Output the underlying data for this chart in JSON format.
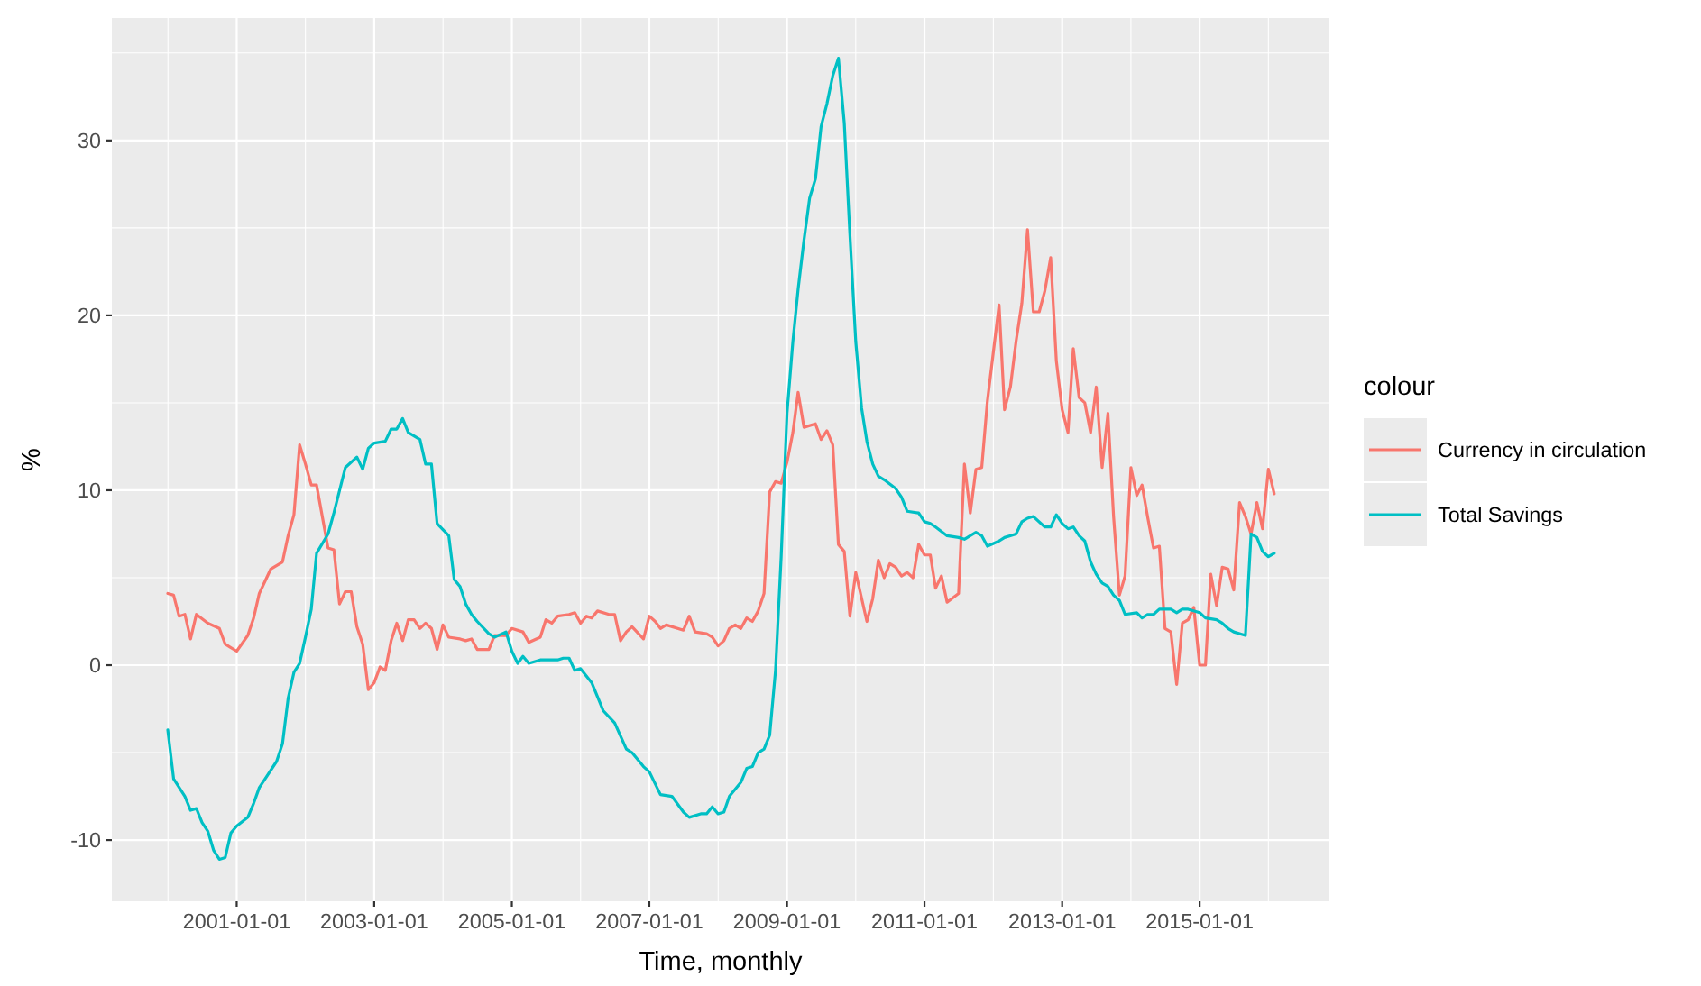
{
  "chart_data": {
    "type": "line",
    "xlabel": "Time, monthly",
    "ylabel": "%",
    "legend_title": "colour",
    "legend": "right",
    "grid": true,
    "xlim": [
      "1999-03-10",
      "2016-11-20"
    ],
    "ylim": [
      -13.5,
      37
    ],
    "xticks": [
      {
        "value": "2001-01-01",
        "label": "2001-01-01"
      },
      {
        "value": "2003-01-01",
        "label": "2003-01-01"
      },
      {
        "value": "2005-01-01",
        "label": "2005-01-01"
      },
      {
        "value": "2007-01-01",
        "label": "2007-01-01"
      },
      {
        "value": "2009-01-01",
        "label": "2009-01-01"
      },
      {
        "value": "2011-01-01",
        "label": "2011-01-01"
      },
      {
        "value": "2013-01-01",
        "label": "2013-01-01"
      },
      {
        "value": "2015-01-01",
        "label": "2015-01-01"
      }
    ],
    "yticks": [
      -10,
      0,
      10,
      20,
      30
    ],
    "series": [
      {
        "name": "Currency in circulation",
        "color": "#f8766d",
        "x": [
          "2000-01",
          "2000-02",
          "2000-03",
          "2000-04",
          "2000-05",
          "2000-06",
          "2000-08",
          "2000-10",
          "2000-11",
          "2001-01",
          "2001-03",
          "2001-04",
          "2001-05",
          "2001-07",
          "2001-09",
          "2001-10",
          "2001-11",
          "2001-12",
          "2002-01",
          "2002-02",
          "2002-03",
          "2002-05",
          "2002-06",
          "2002-07",
          "2002-08",
          "2002-09",
          "2002-10",
          "2002-11",
          "2002-12",
          "2003-01",
          "2003-02",
          "2003-03",
          "2003-04",
          "2003-05",
          "2003-06",
          "2003-07",
          "2003-08",
          "2003-09",
          "2003-10",
          "2003-11",
          "2003-12",
          "2004-01",
          "2004-02",
          "2004-04",
          "2004-05",
          "2004-06",
          "2004-07",
          "2004-09",
          "2004-10",
          "2004-12",
          "2005-01",
          "2005-03",
          "2005-04",
          "2005-06",
          "2005-07",
          "2005-08",
          "2005-09",
          "2005-11",
          "2005-12",
          "2006-01",
          "2006-02",
          "2006-03",
          "2006-04",
          "2006-06",
          "2006-07",
          "2006-08",
          "2006-09",
          "2006-10",
          "2006-12",
          "2007-01",
          "2007-02",
          "2007-03",
          "2007-04",
          "2007-07",
          "2007-08",
          "2007-09",
          "2007-11",
          "2007-12",
          "2008-01",
          "2008-02",
          "2008-03",
          "2008-04",
          "2008-05",
          "2008-06",
          "2008-07",
          "2008-08",
          "2008-09",
          "2008-10",
          "2008-11",
          "2008-12",
          "2009-01",
          "2009-02",
          "2009-03",
          "2009-04",
          "2009-06",
          "2009-07",
          "2009-08",
          "2009-09",
          "2009-10",
          "2009-11",
          "2009-12",
          "2010-01",
          "2010-03",
          "2010-04",
          "2010-05",
          "2010-06",
          "2010-07",
          "2010-08",
          "2010-09",
          "2010-10",
          "2010-11",
          "2010-12",
          "2011-01",
          "2011-02",
          "2011-03",
          "2011-04",
          "2011-05",
          "2011-07",
          "2011-08",
          "2011-09",
          "2011-10",
          "2011-11",
          "2011-12",
          "2012-02",
          "2012-03",
          "2012-04",
          "2012-05",
          "2012-06",
          "2012-07",
          "2012-08",
          "2012-09",
          "2012-10",
          "2012-11",
          "2012-12",
          "2013-01",
          "2013-02",
          "2013-03",
          "2013-04",
          "2013-05",
          "2013-06",
          "2013-07",
          "2013-08",
          "2013-09",
          "2013-10",
          "2013-11",
          "2013-12",
          "2014-01",
          "2014-02",
          "2014-03",
          "2014-04",
          "2014-05",
          "2014-06",
          "2014-07",
          "2014-08",
          "2014-09",
          "2014-10",
          "2014-11",
          "2014-12",
          "2015-01",
          "2015-02",
          "2015-03",
          "2015-04",
          "2015-05",
          "2015-06",
          "2015-07",
          "2015-08",
          "2015-09",
          "2015-10",
          "2015-11",
          "2015-12",
          "2016-01",
          "2016-02"
        ],
        "values": [
          4.1,
          4.0,
          2.8,
          2.9,
          1.5,
          2.9,
          2.4,
          2.1,
          1.2,
          0.8,
          1.7,
          2.7,
          4.1,
          5.5,
          5.9,
          7.4,
          8.6,
          12.6,
          11.5,
          10.3,
          10.3,
          6.7,
          6.6,
          3.5,
          4.2,
          4.2,
          2.2,
          1.2,
          -1.4,
          -1.0,
          -0.1,
          -0.3,
          1.4,
          2.4,
          1.4,
          2.6,
          2.6,
          2.1,
          2.4,
          2.1,
          0.9,
          2.3,
          1.6,
          1.5,
          1.4,
          1.5,
          0.9,
          0.9,
          1.7,
          1.7,
          2.1,
          1.9,
          1.3,
          1.6,
          2.6,
          2.4,
          2.8,
          2.9,
          3.0,
          2.4,
          2.8,
          2.7,
          3.1,
          2.9,
          2.9,
          1.4,
          1.9,
          2.2,
          1.5,
          2.8,
          2.5,
          2.1,
          2.3,
          2.0,
          2.8,
          1.9,
          1.8,
          1.6,
          1.1,
          1.4,
          2.1,
          2.3,
          2.1,
          2.7,
          2.5,
          3.1,
          4.1,
          9.9,
          10.5,
          10.4,
          11.6,
          13.3,
          15.6,
          13.6,
          13.8,
          12.9,
          13.4,
          12.6,
          6.9,
          6.5,
          2.8,
          5.3,
          2.5,
          3.8,
          6.0,
          5.0,
          5.8,
          5.6,
          5.1,
          5.3,
          5.0,
          6.9,
          6.3,
          6.3,
          4.4,
          5.1,
          3.6,
          4.1,
          11.5,
          8.7,
          11.2,
          11.3,
          15.1,
          20.6,
          14.6,
          15.9,
          18.5,
          20.7,
          24.9,
          20.2,
          20.2,
          21.4,
          23.3,
          17.4,
          14.6,
          13.3,
          18.1,
          15.3,
          15.0,
          13.3,
          15.9,
          11.3,
          14.4,
          8.5,
          4.0,
          5.1,
          11.3,
          9.7,
          10.3,
          8.4,
          6.7,
          6.8,
          2.1,
          1.9,
          -1.1,
          2.4,
          2.6,
          3.3,
          0.0,
          0.0,
          5.2,
          3.4,
          5.6,
          5.5,
          4.3,
          9.3,
          8.5,
          7.5,
          9.3,
          7.8,
          11.2,
          9.8
        ]
      },
      {
        "name": "Total Savings",
        "color": "#00bfc4",
        "x": [
          "2000-01",
          "2000-02",
          "2000-04",
          "2000-05",
          "2000-06",
          "2000-07",
          "2000-08",
          "2000-09",
          "2000-10",
          "2000-11",
          "2000-12",
          "2001-01",
          "2001-03",
          "2001-04",
          "2001-05",
          "2001-06",
          "2001-08",
          "2001-09",
          "2001-10",
          "2001-11",
          "2001-12",
          "2002-01",
          "2002-02",
          "2002-03",
          "2002-05",
          "2002-06",
          "2002-08",
          "2002-10",
          "2002-11",
          "2002-12",
          "2003-01",
          "2003-03",
          "2003-04",
          "2003-05",
          "2003-06",
          "2003-07",
          "2003-09",
          "2003-10",
          "2003-11",
          "2003-12",
          "2004-02",
          "2004-03",
          "2004-04",
          "2004-05",
          "2004-06",
          "2004-07",
          "2004-09",
          "2004-10",
          "2004-12",
          "2005-01",
          "2005-02",
          "2005-03",
          "2005-04",
          "2005-06",
          "2005-09",
          "2005-10",
          "2005-11",
          "2005-12",
          "2006-01",
          "2006-03",
          "2006-05",
          "2006-07",
          "2006-09",
          "2006-10",
          "2006-12",
          "2007-01",
          "2007-03",
          "2007-05",
          "2007-07",
          "2007-08",
          "2007-10",
          "2007-11",
          "2007-12",
          "2008-01",
          "2008-02",
          "2008-03",
          "2008-05",
          "2008-06",
          "2008-07",
          "2008-08",
          "2008-09",
          "2008-10",
          "2008-11",
          "2008-12",
          "2009-01",
          "2009-02",
          "2009-03",
          "2009-04",
          "2009-05",
          "2009-06",
          "2009-07",
          "2009-08",
          "2009-09",
          "2009-10",
          "2009-11",
          "2009-12",
          "2010-01",
          "2010-02",
          "2010-03",
          "2010-04",
          "2010-05",
          "2010-06",
          "2010-08",
          "2010-09",
          "2010-10",
          "2010-12",
          "2011-01",
          "2011-02",
          "2011-03",
          "2011-05",
          "2011-07",
          "2011-08",
          "2011-09",
          "2011-10",
          "2011-11",
          "2011-12",
          "2012-02",
          "2012-03",
          "2012-05",
          "2012-06",
          "2012-07",
          "2012-08",
          "2012-10",
          "2012-11",
          "2012-12",
          "2013-01",
          "2013-02",
          "2013-03",
          "2013-04",
          "2013-05",
          "2013-06",
          "2013-07",
          "2013-08",
          "2013-09",
          "2013-10",
          "2013-11",
          "2013-12",
          "2014-02",
          "2014-03",
          "2014-04",
          "2014-05",
          "2014-06",
          "2014-08",
          "2014-09",
          "2014-10",
          "2014-11",
          "2015-01",
          "2015-02",
          "2015-04",
          "2015-05",
          "2015-06",
          "2015-07",
          "2015-09",
          "2015-10",
          "2015-11",
          "2015-12",
          "2016-01",
          "2016-02"
        ],
        "values": [
          -3.7,
          -6.5,
          -7.5,
          -8.3,
          -8.2,
          -9.0,
          -9.5,
          -10.6,
          -11.1,
          -11.0,
          -9.6,
          -9.2,
          -8.7,
          -7.9,
          -7.0,
          -6.5,
          -5.5,
          -4.5,
          -1.9,
          -0.4,
          0.1,
          1.6,
          3.2,
          6.4,
          7.5,
          8.7,
          11.3,
          11.9,
          11.2,
          12.4,
          12.7,
          12.8,
          13.5,
          13.5,
          14.1,
          13.3,
          12.9,
          11.5,
          11.5,
          8.1,
          7.4,
          4.9,
          4.5,
          3.5,
          2.9,
          2.5,
          1.8,
          1.6,
          1.9,
          0.8,
          0.1,
          0.5,
          0.1,
          0.3,
          0.3,
          0.4,
          0.4,
          -0.3,
          -0.2,
          -1.0,
          -2.6,
          -3.3,
          -4.8,
          -5.0,
          -5.8,
          -6.1,
          -7.4,
          -7.5,
          -8.4,
          -8.7,
          -8.5,
          -8.5,
          -8.1,
          -8.5,
          -8.4,
          -7.5,
          -6.7,
          -5.9,
          -5.8,
          -5.0,
          -4.8,
          -4.0,
          -0.3,
          6.2,
          14.4,
          18.5,
          21.5,
          24.3,
          26.7,
          27.8,
          30.8,
          32.1,
          33.7,
          34.7,
          31.0,
          24.6,
          18.5,
          14.7,
          12.8,
          11.5,
          10.8,
          10.6,
          10.1,
          9.6,
          8.8,
          8.7,
          8.2,
          8.1,
          7.9,
          7.4,
          7.3,
          7.2,
          7.4,
          7.6,
          7.4,
          6.8,
          7.1,
          7.3,
          7.5,
          8.2,
          8.4,
          8.5,
          7.9,
          7.9,
          8.6,
          8.1,
          7.8,
          7.9,
          7.4,
          7.1,
          5.9,
          5.2,
          4.7,
          4.5,
          4.0,
          3.7,
          2.9,
          3.0,
          2.7,
          2.9,
          2.9,
          3.2,
          3.2,
          3.0,
          3.2,
          3.2,
          3.0,
          2.7,
          2.6,
          2.4,
          2.1,
          1.9,
          1.7,
          7.5,
          7.3,
          6.5,
          6.2,
          6.4
        ]
      }
    ]
  }
}
